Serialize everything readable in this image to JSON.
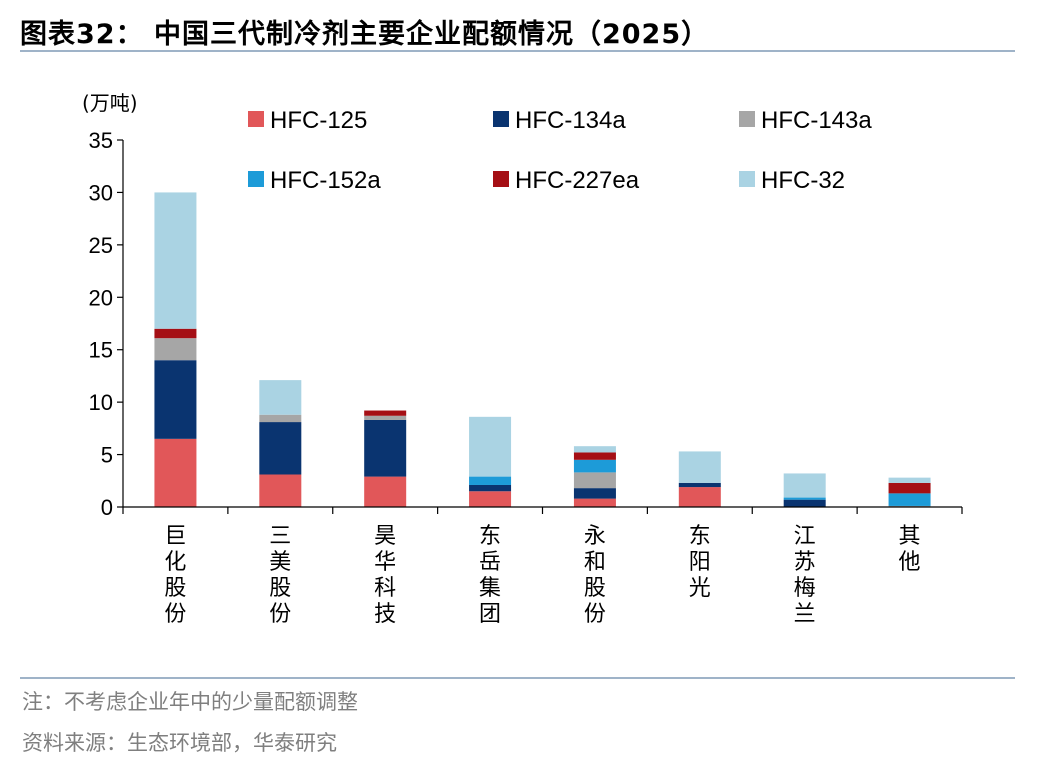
{
  "header": {
    "title": "图表32：  中国三代制冷剂主要企业配额情况（2025）"
  },
  "footer": {
    "note": "注：不考虑企业年中的少量配额调整",
    "source": "资料来源：生态环境部，华泰研究"
  },
  "chart_data": {
    "type": "bar",
    "stacked": true,
    "unit_label": "(万吨)",
    "ylim": [
      0,
      35
    ],
    "yticks": [
      "0",
      "5",
      "10",
      "15",
      "20",
      "25",
      "30",
      "35"
    ],
    "ytick_values": [
      0,
      5,
      10,
      15,
      20,
      25,
      30,
      35
    ],
    "grid": false,
    "legend_position": "top",
    "categories": [
      "巨化股份",
      "三美股份",
      "昊华科技",
      "东岳集团",
      "永和股份",
      "东阳光",
      "江苏梅兰",
      "其他"
    ],
    "series": [
      {
        "name": "HFC-125",
        "color": "#e15759",
        "values": [
          6.5,
          3.1,
          2.9,
          1.5,
          0.8,
          1.9,
          0.0,
          0.0
        ]
      },
      {
        "name": "HFC-134a",
        "color": "#0a3470",
        "values": [
          7.5,
          5.0,
          5.4,
          0.6,
          1.0,
          0.4,
          0.7,
          0.0
        ]
      },
      {
        "name": "HFC-143a",
        "color": "#a6a6a6",
        "values": [
          2.1,
          0.7,
          0.4,
          0.0,
          1.5,
          0.0,
          0.0,
          0.1
        ]
      },
      {
        "name": "HFC-152a",
        "color": "#1d9bd8",
        "values": [
          0.0,
          0.0,
          0.0,
          0.8,
          1.2,
          0.0,
          0.2,
          1.2
        ]
      },
      {
        "name": "HFC-227ea",
        "color": "#a50f15",
        "values": [
          0.9,
          0.0,
          0.5,
          0.0,
          0.7,
          0.0,
          0.0,
          1.0
        ]
      },
      {
        "name": "HFC-32",
        "color": "#aad3e3",
        "values": [
          13.0,
          3.3,
          0.0,
          5.7,
          0.6,
          3.0,
          2.3,
          0.5
        ]
      }
    ]
  }
}
